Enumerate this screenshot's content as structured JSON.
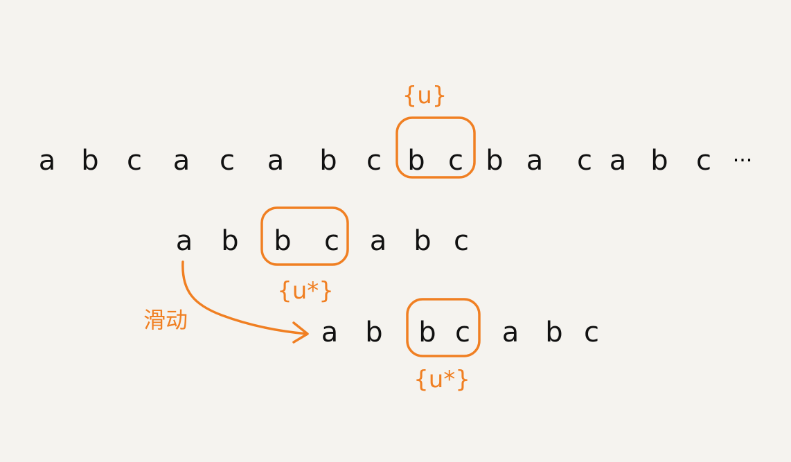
{
  "colors": {
    "ink": "#111111",
    "accent": "#f07f22",
    "background": "#f5f3ef"
  },
  "main_string": {
    "chars": [
      "a",
      "b",
      "c",
      "a",
      "c",
      "a",
      "b",
      "c",
      "b",
      "c",
      "b",
      "a",
      "c",
      "a",
      "b",
      "c"
    ],
    "ellipsis": "..."
  },
  "pattern_original": {
    "chars": [
      "a",
      "b",
      "b",
      "c",
      "a",
      "b",
      "c"
    ]
  },
  "pattern_shifted": {
    "chars": [
      "a",
      "b",
      "b",
      "c",
      "a",
      "b",
      "c"
    ]
  },
  "labels": {
    "main_match": "{u}",
    "pattern_match": "{u*}",
    "shifted_match": "{u*}",
    "slide": "滑动"
  }
}
